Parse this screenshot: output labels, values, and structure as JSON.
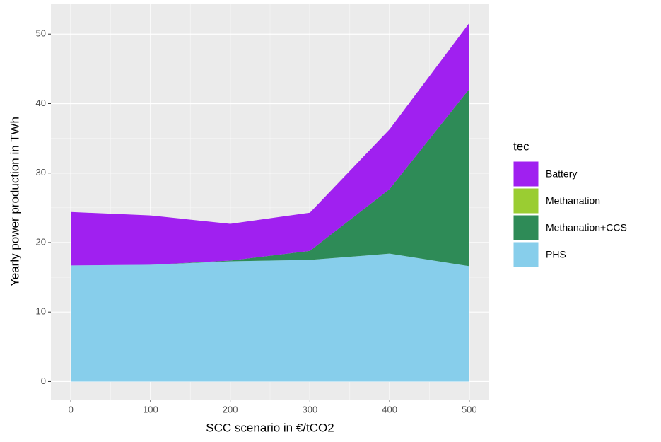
{
  "chart_data": {
    "type": "area",
    "stacked": true,
    "x_label": "SCC scenario in €/tCO2",
    "y_label": "Yearly power production in TWh",
    "legend_title": "tec",
    "x": [
      0,
      100,
      200,
      300,
      400,
      500
    ],
    "series": [
      {
        "name": "Battery",
        "color": "#a020f0",
        "values": [
          7.7,
          7.1,
          5.3,
          5.5,
          8.6,
          9.5
        ]
      },
      {
        "name": "Methanation",
        "color": "#9acd32",
        "values": [
          0,
          0,
          0,
          0,
          0,
          0
        ]
      },
      {
        "name": "Methanation+CCS",
        "color": "#2e8b57",
        "values": [
          0,
          0,
          0.1,
          1.3,
          9.3,
          25.5
        ]
      },
      {
        "name": "PHS",
        "color": "#87ceeb",
        "values": [
          16.7,
          16.8,
          17.3,
          17.5,
          18.4,
          16.6
        ]
      }
    ],
    "xlim": [
      -25,
      525
    ],
    "xticks": [
      0,
      100,
      200,
      300,
      400,
      500
    ],
    "ylim": [
      -2.6,
      54.4
    ],
    "yticks": [
      0,
      10,
      20,
      30,
      40,
      50
    ],
    "grid": true,
    "legend_position": "right"
  }
}
